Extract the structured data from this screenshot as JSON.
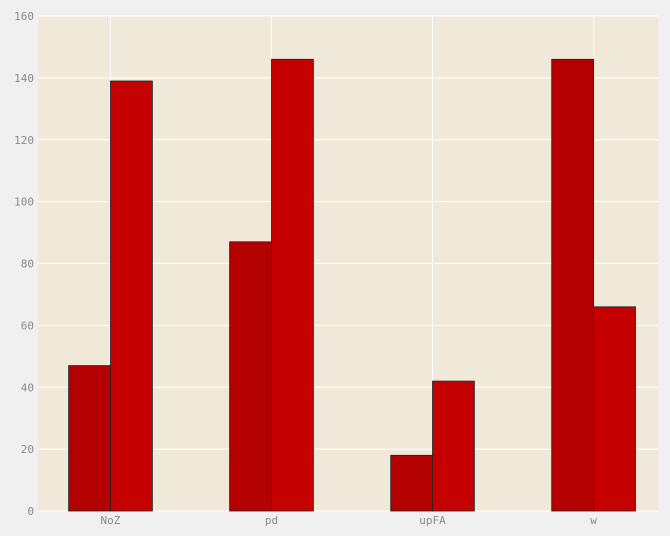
{
  "colors": {
    "figure_bg": "#f0f0f0",
    "plot_bg": "#f0e8d8",
    "grid": "#ffffff",
    "bar_edge": "#222222"
  },
  "chart_data": {
    "type": "bar",
    "categories": [
      "NoZ",
      "pd",
      "upFA",
      "w"
    ],
    "series": [
      {
        "values": [
          47,
          87,
          18,
          146
        ],
        "color": "#b30000"
      },
      {
        "values": [
          139,
          146,
          42,
          66
        ],
        "color": "#c40000"
      }
    ],
    "ylim": [
      0,
      160
    ],
    "yticks": [
      0,
      20,
      40,
      60,
      80,
      100,
      120,
      140,
      160
    ],
    "grid": true,
    "legend": "none",
    "title": "",
    "xlabel": "",
    "ylabel": ""
  }
}
